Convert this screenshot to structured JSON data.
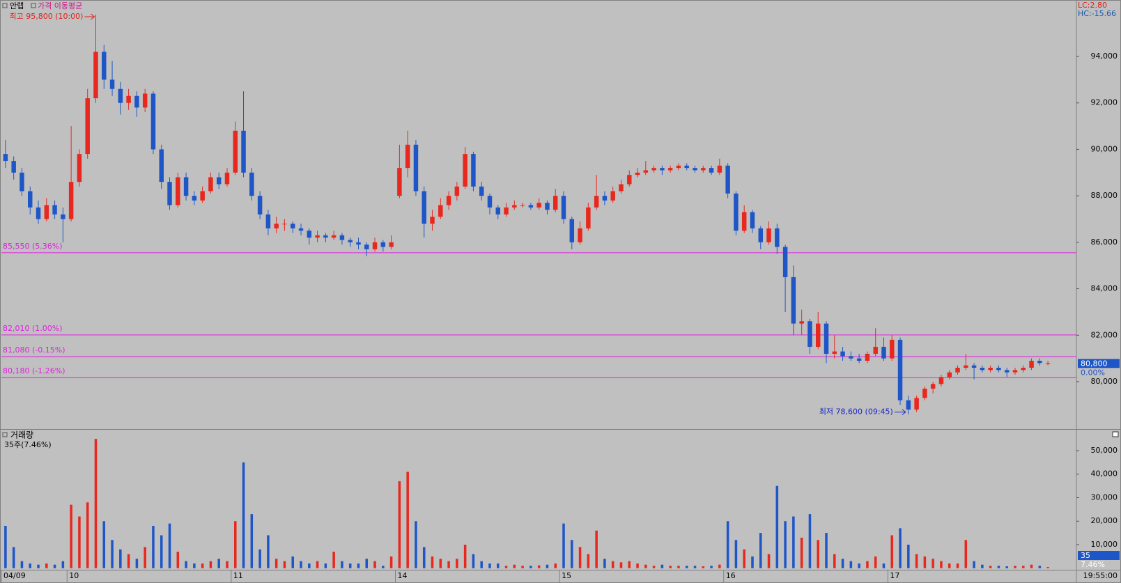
{
  "chart_data": [
    {
      "type": "candlestick",
      "legend": [
        "안랩",
        "가격 이동평균"
      ],
      "stats": [
        "LC:2.80",
        "HC:-15.66"
      ],
      "annotations": [
        {
          "text": "최고 95,800 (10:00)",
          "color": "#e0201a"
        },
        {
          "text": "최저 78,600 (09:45)",
          "color": "#1a28c8"
        }
      ],
      "categories": [
        "04/09",
        null,
        null,
        null,
        null,
        null,
        null,
        null,
        "10",
        null,
        null,
        null,
        null,
        null,
        null,
        null,
        null,
        null,
        null,
        null,
        null,
        null,
        null,
        null,
        null,
        null,
        null,
        null,
        "11",
        null,
        null,
        null,
        null,
        null,
        null,
        null,
        null,
        null,
        null,
        null,
        null,
        null,
        null,
        null,
        null,
        null,
        null,
        null,
        "14",
        null,
        null,
        null,
        null,
        null,
        null,
        null,
        null,
        null,
        null,
        null,
        null,
        null,
        null,
        null,
        null,
        null,
        null,
        null,
        "15",
        null,
        null,
        null,
        null,
        null,
        null,
        null,
        null,
        null,
        null,
        null,
        null,
        null,
        null,
        null,
        null,
        null,
        null,
        null,
        "16",
        null,
        null,
        null,
        null,
        null,
        null,
        null,
        null,
        null,
        null,
        null,
        null,
        null,
        null,
        null,
        null,
        null,
        null,
        null,
        "17",
        null,
        null,
        null,
        null,
        null,
        null,
        null,
        null,
        null,
        null,
        null,
        null,
        null,
        null,
        null,
        null,
        null,
        null,
        null
      ],
      "time_label": "19:55:00",
      "up_color": "#e8281e",
      "down_color": "#1e56c8",
      "ohlc": [
        [
          89800,
          90400,
          89200,
          89500
        ],
        [
          89500,
          89700,
          88700,
          89000
        ],
        [
          89000,
          89200,
          88000,
          88200
        ],
        [
          88200,
          88400,
          87200,
          87500
        ],
        [
          87500,
          87800,
          86800,
          87000
        ],
        [
          87000,
          87900,
          86900,
          87600
        ],
        [
          87600,
          87800,
          87000,
          87200
        ],
        [
          87200,
          87500,
          86000,
          87000
        ],
        [
          87000,
          91000,
          86900,
          88600
        ],
        [
          88600,
          90000,
          88400,
          89800
        ],
        [
          89800,
          92600,
          89600,
          92200
        ],
        [
          92200,
          95800,
          92000,
          94200
        ],
        [
          94200,
          94500,
          92600,
          93000
        ],
        [
          93000,
          93800,
          92300,
          92600
        ],
        [
          92600,
          92900,
          91500,
          92000
        ],
        [
          92000,
          92600,
          91700,
          92300
        ],
        [
          92300,
          92500,
          91400,
          91800
        ],
        [
          91800,
          92600,
          91600,
          92400
        ],
        [
          92400,
          92500,
          89800,
          90000
        ],
        [
          90000,
          90200,
          88300,
          88600
        ],
        [
          88600,
          88800,
          87400,
          87600
        ],
        [
          87600,
          89000,
          87500,
          88800
        ],
        [
          88800,
          89000,
          87800,
          88000
        ],
        [
          88000,
          88200,
          87600,
          87800
        ],
        [
          87800,
          88400,
          87700,
          88200
        ],
        [
          88200,
          89000,
          88100,
          88800
        ],
        [
          88800,
          89000,
          88300,
          88500
        ],
        [
          88500,
          89200,
          88400,
          89000
        ],
        [
          89000,
          91200,
          88900,
          90800
        ],
        [
          90800,
          92500,
          88800,
          89000
        ],
        [
          89000,
          89200,
          87800,
          88000
        ],
        [
          88000,
          88200,
          87000,
          87200
        ],
        [
          87200,
          87400,
          86300,
          86600
        ],
        [
          86600,
          87100,
          86400,
          86800
        ],
        [
          86800,
          87000,
          86500,
          86800
        ],
        [
          86800,
          86900,
          86400,
          86600
        ],
        [
          86600,
          86800,
          86300,
          86500
        ],
        [
          86500,
          86600,
          85900,
          86200
        ],
        [
          86200,
          86500,
          86000,
          86300
        ],
        [
          86300,
          86400,
          86000,
          86200
        ],
        [
          86200,
          86500,
          86100,
          86300
        ],
        [
          86300,
          86400,
          85900,
          86100
        ],
        [
          86100,
          86200,
          85800,
          86000
        ],
        [
          86000,
          86200,
          85700,
          85900
        ],
        [
          85900,
          86000,
          85400,
          85700
        ],
        [
          85700,
          86200,
          85600,
          86000
        ],
        [
          86000,
          86100,
          85600,
          85800
        ],
        [
          85800,
          86300,
          85700,
          86000
        ],
        [
          88000,
          90200,
          87900,
          89200
        ],
        [
          89200,
          90800,
          88800,
          90200
        ],
        [
          90200,
          90400,
          88000,
          88200
        ],
        [
          88200,
          88400,
          86200,
          86800
        ],
        [
          86800,
          87400,
          86500,
          87100
        ],
        [
          87100,
          87900,
          87000,
          87600
        ],
        [
          87600,
          88200,
          87400,
          88000
        ],
        [
          88000,
          88600,
          87800,
          88400
        ],
        [
          88400,
          90100,
          88300,
          89800
        ],
        [
          89800,
          89900,
          88200,
          88400
        ],
        [
          88400,
          88600,
          87800,
          88000
        ],
        [
          88000,
          88100,
          87200,
          87500
        ],
        [
          87500,
          87600,
          87000,
          87200
        ],
        [
          87200,
          87700,
          87100,
          87500
        ],
        [
          87500,
          87800,
          87400,
          87600
        ],
        [
          87600,
          87700,
          87500,
          87600
        ],
        [
          87600,
          87700,
          87400,
          87500
        ],
        [
          87500,
          87900,
          87400,
          87700
        ],
        [
          87700,
          87800,
          87200,
          87400
        ],
        [
          87400,
          88300,
          87300,
          88000
        ],
        [
          88000,
          88200,
          86800,
          87000
        ],
        [
          87000,
          87100,
          85700,
          86000
        ],
        [
          86000,
          86900,
          85900,
          86600
        ],
        [
          86600,
          87700,
          86500,
          87500
        ],
        [
          87500,
          88900,
          87400,
          88000
        ],
        [
          88000,
          88200,
          87600,
          87800
        ],
        [
          87800,
          88400,
          87700,
          88200
        ],
        [
          88200,
          88700,
          88100,
          88500
        ],
        [
          88500,
          89100,
          88400,
          88900
        ],
        [
          88900,
          89200,
          88800,
          89000
        ],
        [
          89000,
          89500,
          88900,
          89100
        ],
        [
          89100,
          89300,
          89000,
          89200
        ],
        [
          89200,
          89300,
          88900,
          89100
        ],
        [
          89100,
          89300,
          89000,
          89200
        ],
        [
          89200,
          89400,
          89100,
          89300
        ],
        [
          89300,
          89400,
          89100,
          89200
        ],
        [
          89200,
          89300,
          89000,
          89100
        ],
        [
          89100,
          89300,
          89000,
          89200
        ],
        [
          89200,
          89300,
          88900,
          89000
        ],
        [
          89000,
          89600,
          88900,
          89300
        ],
        [
          89300,
          89400,
          87900,
          88100
        ],
        [
          88100,
          88200,
          86300,
          86500
        ],
        [
          86500,
          87600,
          86400,
          87300
        ],
        [
          87300,
          87400,
          86400,
          86600
        ],
        [
          86600,
          86700,
          85700,
          86000
        ],
        [
          86000,
          86900,
          85900,
          86600
        ],
        [
          86600,
          86800,
          85500,
          85800
        ],
        [
          85800,
          85900,
          83000,
          84500
        ],
        [
          84500,
          85000,
          82000,
          82500
        ],
        [
          82500,
          83100,
          82000,
          82600
        ],
        [
          82600,
          82700,
          81200,
          81500
        ],
        [
          81500,
          83000,
          81400,
          82500
        ],
        [
          82500,
          82600,
          80800,
          81200
        ],
        [
          81200,
          82000,
          81000,
          81300
        ],
        [
          81300,
          81500,
          80900,
          81100
        ],
        [
          81100,
          81300,
          80900,
          81000
        ],
        [
          81000,
          81200,
          80800,
          80900
        ],
        [
          80900,
          81300,
          80800,
          81200
        ],
        [
          81200,
          82300,
          81100,
          81500
        ],
        [
          81500,
          81900,
          80900,
          81000
        ],
        [
          81000,
          82000,
          80900,
          81800
        ],
        [
          81800,
          81900,
          79000,
          79200
        ],
        [
          79200,
          79400,
          78600,
          78800
        ],
        [
          78800,
          79400,
          78700,
          79300
        ],
        [
          79300,
          79800,
          79200,
          79700
        ],
        [
          79700,
          80000,
          79500,
          79900
        ],
        [
          79900,
          80300,
          79800,
          80200
        ],
        [
          80200,
          80500,
          80100,
          80400
        ],
        [
          80400,
          80700,
          80300,
          80600
        ],
        [
          80600,
          81200,
          80500,
          80700
        ],
        [
          80700,
          80800,
          80100,
          80600
        ],
        [
          80600,
          80700,
          80400,
          80500
        ],
        [
          80500,
          80700,
          80400,
          80600
        ],
        [
          80600,
          80700,
          80400,
          80500
        ],
        [
          80500,
          80600,
          80200,
          80400
        ],
        [
          80400,
          80600,
          80300,
          80500
        ],
        [
          80500,
          80700,
          80400,
          80600
        ],
        [
          80600,
          81000,
          80500,
          80900
        ],
        [
          80900,
          81000,
          80700,
          80800
        ],
        [
          80800,
          80900,
          80700,
          80800
        ]
      ],
      "ylim": [
        77960,
        96430
      ],
      "yticks": [
        {
          "value": 80000,
          "label": "80,000"
        },
        {
          "value": 82000,
          "label": "82,000"
        },
        {
          "value": 84000,
          "label": "84,000"
        },
        {
          "value": 86000,
          "label": "86,000"
        },
        {
          "value": 88000,
          "label": "88,000"
        },
        {
          "value": 90000,
          "label": "90,000"
        },
        {
          "value": 92000,
          "label": "92,000"
        },
        {
          "value": 94000,
          "label": "94,000"
        }
      ],
      "hlines": [
        {
          "value": 85550,
          "label": "85,550 (5.36%)"
        },
        {
          "value": 82010,
          "label": "82,010 (1.00%)"
        },
        {
          "value": 81080,
          "label": "81,080 (-0.15%)"
        },
        {
          "value": 80180,
          "label": "80,180 (-1.26%)"
        }
      ],
      "hline_color": "#e020e0",
      "last_price": {
        "value": 80800,
        "label": "80,800"
      },
      "last_change": "0.00%"
    },
    {
      "type": "bar",
      "title": "거래량",
      "subtitle": "35주(7.46%)",
      "last_volume": "35",
      "last_volume_change": "7.46%",
      "values": [
        18000,
        9000,
        3000,
        2000,
        1500,
        2000,
        1500,
        3000,
        27000,
        22000,
        28000,
        55000,
        20000,
        12000,
        8000,
        6000,
        4000,
        9000,
        18000,
        14000,
        19000,
        7000,
        3000,
        2000,
        2000,
        3000,
        4000,
        3000,
        20000,
        45000,
        23000,
        8000,
        14000,
        4000,
        3000,
        5000,
        3000,
        2000,
        3000,
        2000,
        7000,
        3000,
        2000,
        2000,
        4000,
        3000,
        1000,
        5000,
        37000,
        41000,
        20000,
        9000,
        5000,
        4000,
        3000,
        4000,
        10000,
        6000,
        3000,
        2000,
        2000,
        1000,
        1500,
        1000,
        1000,
        1200,
        1500,
        2000,
        19000,
        12000,
        9000,
        6000,
        16000,
        4000,
        3000,
        2500,
        3000,
        2000,
        1500,
        1000,
        1500,
        1000,
        1000,
        1000,
        1000,
        800,
        1000,
        1500,
        20000,
        12000,
        8000,
        5000,
        15000,
        6000,
        35000,
        20000,
        22000,
        13000,
        23000,
        12000,
        15000,
        6000,
        4000,
        3000,
        2000,
        3000,
        5000,
        2000,
        14000,
        17000,
        10000,
        6000,
        5000,
        4000,
        3000,
        2000,
        2000,
        12000,
        3000,
        1500,
        1000,
        1000,
        800,
        1000,
        1000,
        1500,
        1000,
        500
      ],
      "ylim": [
        -670,
        58890
      ],
      "yticks": [
        {
          "value": 10000,
          "label": "10,000"
        },
        {
          "value": 20000,
          "label": "20,000"
        },
        {
          "value": 30000,
          "label": "30,000"
        },
        {
          "value": 40000,
          "label": "40,000"
        },
        {
          "value": 50000,
          "label": "50,000"
        }
      ]
    }
  ]
}
